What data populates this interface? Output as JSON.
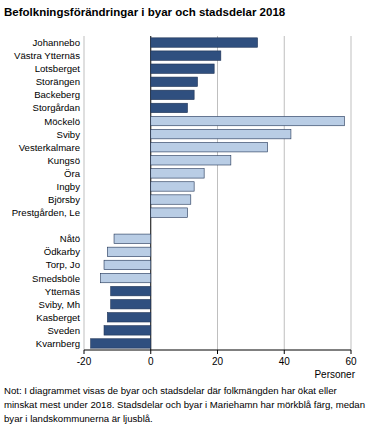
{
  "chart_data": {
    "type": "bar",
    "orientation": "horizontal",
    "title": "Befolkningsförändringar i byar och stadsdelar 2018",
    "x_label": "Personer",
    "note": "Not: I diagrammet visas de byar och stadsdelar där folkmängden har ökat eller minskat mest under 2018. Stadsdelar och byar i Mariehamn har mörkblå färg, medan byar i landskommunerna är ljusblå.",
    "categories": [
      "Johannebo",
      "Västra Ytternäs",
      "Lotsberget",
      "Storängen",
      "Backeberg",
      "Storgårdan",
      "Möckelö",
      "Sviby",
      "Vesterkalmare",
      "Kungsö",
      "Öra",
      "Ingby",
      "Björsby",
      "Prestgården, Le",
      null,
      "Nåtö",
      "Ödkarby",
      "Torp, Jo",
      "Smedsböle",
      "Yttemäs",
      "Sviby, Mh",
      "Kasberget",
      "Sveden",
      "Kvarnberg"
    ],
    "values": [
      32,
      21,
      19,
      14,
      13,
      11,
      58,
      42,
      35,
      24,
      16,
      13,
      12,
      11,
      null,
      -11,
      -13,
      -14,
      -15,
      -12,
      -12,
      -13,
      -14,
      -18
    ],
    "colors": [
      "#2f4f7f",
      "#2f4f7f",
      "#2f4f7f",
      "#2f4f7f",
      "#2f4f7f",
      "#2f4f7f",
      "#b9cde5",
      "#b9cde5",
      "#b9cde5",
      "#b9cde5",
      "#b9cde5",
      "#b9cde5",
      "#b9cde5",
      "#b9cde5",
      null,
      "#b9cde5",
      "#b9cde5",
      "#b9cde5",
      "#b9cde5",
      "#2f4f7f",
      "#2f4f7f",
      "#2f4f7f",
      "#2f4f7f",
      "#2f4f7f"
    ],
    "xlim": [
      -20,
      60
    ],
    "xticks": [
      -20,
      0,
      20,
      40,
      60
    ],
    "grid": true
  }
}
